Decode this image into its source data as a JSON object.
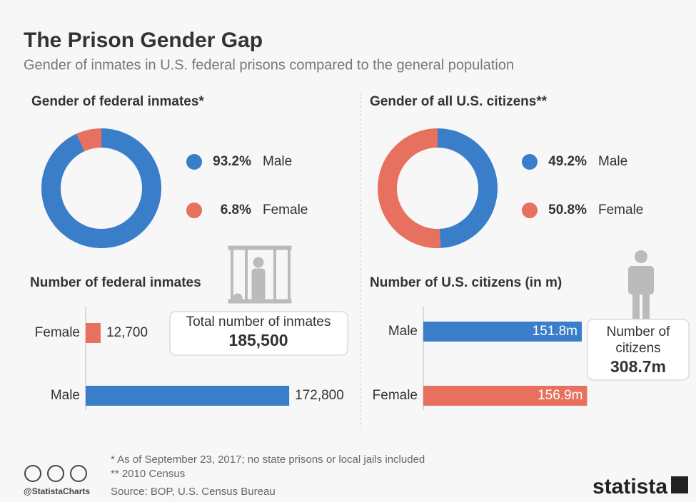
{
  "header": {
    "title": "The Prison Gender Gap",
    "subtitle": "Gender of inmates in U.S. federal prisons compared to the general population"
  },
  "chart_data": [
    {
      "type": "donut",
      "title": "Gender of federal inmates*",
      "categories": [
        "Male",
        "Female"
      ],
      "values": [
        93.2,
        6.8
      ],
      "value_labels": [
        "93.2%",
        "6.8%"
      ],
      "colors": [
        "#3a7dc8",
        "#e8705f"
      ]
    },
    {
      "type": "donut",
      "title": "Gender of all U.S. citizens**",
      "categories": [
        "Male",
        "Female"
      ],
      "values": [
        49.2,
        50.8
      ],
      "value_labels": [
        "49.2%",
        "50.8%"
      ],
      "colors": [
        "#3a7dc8",
        "#e8705f"
      ]
    },
    {
      "type": "hbar",
      "title": "Number of federal inmates",
      "categories": [
        "Female",
        "Male"
      ],
      "values": [
        12700,
        172800
      ],
      "value_labels": [
        "12,700",
        "172,800"
      ],
      "colors": [
        "#e8705f",
        "#3a7dc8"
      ],
      "xlim": [
        0,
        180000
      ],
      "annotation": [
        "Total number of inmates",
        "185,500"
      ]
    },
    {
      "type": "hbar",
      "title": "Number of U.S. citizens (in m)",
      "categories": [
        "Male",
        "Female"
      ],
      "values": [
        151.8,
        156.9
      ],
      "value_labels": [
        "151.8m",
        "156.9m"
      ],
      "colors": [
        "#3a7dc8",
        "#e8705f"
      ],
      "xlim": [
        0,
        160
      ],
      "annotation": [
        "Number of",
        "citizens",
        "308.7m"
      ]
    }
  ],
  "footer": {
    "notes": [
      "*  As of September 23, 2017; no state prisons or local jails included",
      "** 2010 Census"
    ],
    "source": "Source: BOP, U.S. Census Bureau",
    "handle": "@StatistaCharts",
    "brand": "statista"
  }
}
